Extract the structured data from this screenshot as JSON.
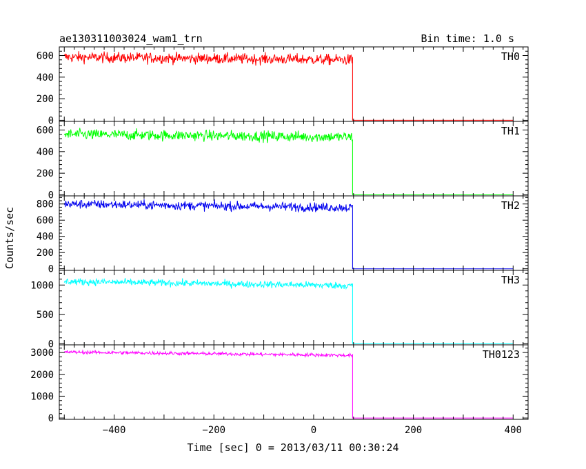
{
  "header": {
    "title": "ae130311003024_wam1_trn",
    "bin_time": "Bin time: 1.0 s"
  },
  "chart_data": {
    "type": "line",
    "xlabel": "Time [sec] 0 = 2013/03/11 00:30:24",
    "ylabel": "Counts/sec",
    "xlim": [
      -510,
      430
    ],
    "xticks": [
      -400,
      -200,
      0,
      200,
      400
    ],
    "x_range_data": [
      -500,
      400
    ],
    "drop_time": 78,
    "panels": [
      {
        "name": "TH0",
        "color": "#ff0000",
        "level_start": 585,
        "level_end": 560,
        "noise": 25,
        "ylim": [
          -10,
          680
        ],
        "yticks": [
          0,
          200,
          400,
          600
        ]
      },
      {
        "name": "TH1",
        "color": "#00ff00",
        "level_start": 560,
        "level_end": 535,
        "noise": 25,
        "ylim": [
          -10,
          680
        ],
        "yticks": [
          0,
          200,
          400,
          600
        ]
      },
      {
        "name": "TH2",
        "color": "#0000ee",
        "level_start": 800,
        "level_end": 755,
        "noise": 28,
        "ylim": [
          -20,
          900
        ],
        "yticks": [
          0,
          200,
          400,
          600,
          800
        ]
      },
      {
        "name": "TH3",
        "color": "#00ffff",
        "level_start": 1060,
        "level_end": 990,
        "noise": 30,
        "ylim": [
          -20,
          1250
        ],
        "yticks": [
          0,
          500,
          1000
        ]
      },
      {
        "name": "TH0123",
        "color": "#ff00ff",
        "level_start": 3020,
        "level_end": 2870,
        "noise": 40,
        "ylim": [
          -60,
          3350
        ],
        "yticks": [
          0,
          1000,
          2000,
          3000
        ]
      }
    ]
  }
}
